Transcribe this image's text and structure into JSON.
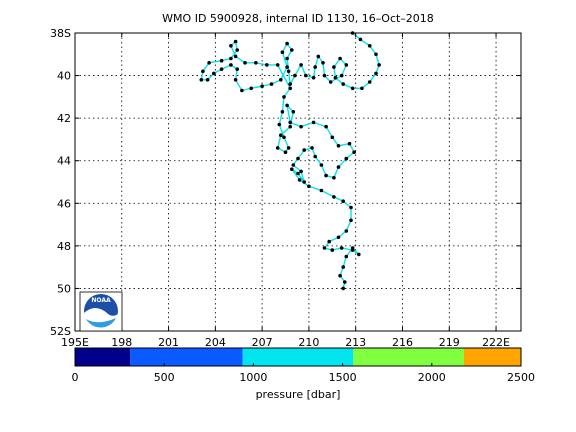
{
  "chart_data": [
    {
      "type": "line",
      "title": "WMO ID 5900928, internal ID 1130, 16–Oct–2018",
      "xlabel": "",
      "ylabel": "",
      "x_ticks": [
        195,
        198,
        201,
        204,
        207,
        210,
        213,
        216,
        219,
        222
      ],
      "x_tick_labels": [
        "195E",
        "198",
        "201",
        "204",
        "207",
        "210",
        "213",
        "216",
        "219",
        "222E"
      ],
      "y_ticks": [
        -38,
        -40,
        -42,
        -44,
        -46,
        -48,
        -50,
        -52
      ],
      "y_tick_labels": [
        "38S",
        "40",
        "42",
        "44",
        "46",
        "48",
        "50",
        "52S"
      ],
      "xlim": [
        195,
        223.6
      ],
      "ylim": [
        -52,
        -38
      ],
      "grid": true,
      "line_color": "#00e5ee",
      "marker_color": "#000000",
      "series": [
        {
          "values_lon_lat": [
            [
              212.8,
              -38.0
            ],
            [
              213.3,
              -38.3
            ],
            [
              213.9,
              -38.6
            ],
            [
              214.3,
              -39.0
            ],
            [
              214.5,
              -39.5
            ],
            [
              214.3,
              -39.9
            ],
            [
              213.9,
              -40.3
            ],
            [
              213.4,
              -40.6
            ],
            [
              212.8,
              -40.6
            ],
            [
              212.2,
              -40.4
            ],
            [
              211.7,
              -40.1
            ],
            [
              211.6,
              -39.6
            ],
            [
              212.0,
              -39.2
            ],
            [
              212.4,
              -39.5
            ],
            [
              212.1,
              -40.0
            ],
            [
              211.4,
              -40.3
            ],
            [
              211.0,
              -40.0
            ],
            [
              210.9,
              -39.4
            ],
            [
              210.6,
              -39.1
            ],
            [
              210.4,
              -39.6
            ],
            [
              210.3,
              -40.1
            ],
            [
              209.8,
              -40.0
            ],
            [
              209.5,
              -39.5
            ],
            [
              209.1,
              -40.0
            ],
            [
              208.8,
              -40.4
            ],
            [
              208.7,
              -39.8
            ],
            [
              208.6,
              -39.2
            ],
            [
              208.9,
              -38.8
            ],
            [
              208.6,
              -38.5
            ],
            [
              208.3,
              -38.9
            ],
            [
              208.6,
              -39.6
            ],
            [
              208.2,
              -40.2
            ],
            [
              207.6,
              -40.4
            ],
            [
              207.0,
              -40.5
            ],
            [
              206.3,
              -40.6
            ],
            [
              205.7,
              -40.7
            ],
            [
              205.3,
              -40.2
            ],
            [
              205.4,
              -39.7
            ],
            [
              205.0,
              -39.5
            ],
            [
              204.4,
              -39.7
            ],
            [
              203.9,
              -39.9
            ],
            [
              203.5,
              -40.2
            ],
            [
              203.1,
              -40.2
            ],
            [
              203.2,
              -39.8
            ],
            [
              203.6,
              -39.4
            ],
            [
              204.4,
              -39.3
            ],
            [
              205.0,
              -39.2
            ],
            [
              205.4,
              -38.8
            ],
            [
              205.3,
              -38.4
            ],
            [
              205.0,
              -38.6
            ],
            [
              205.3,
              -39.1
            ],
            [
              205.9,
              -39.4
            ],
            [
              206.6,
              -39.4
            ],
            [
              207.3,
              -39.5
            ],
            [
              208.0,
              -39.5
            ],
            [
              208.8,
              -40.6
            ],
            [
              208.4,
              -41.0
            ],
            [
              208.3,
              -41.7
            ],
            [
              208.1,
              -42.3
            ],
            [
              208.4,
              -42.9
            ],
            [
              208.7,
              -43.4
            ],
            [
              208.5,
              -43.6
            ],
            [
              208.0,
              -43.4
            ],
            [
              208.2,
              -42.8
            ],
            [
              208.8,
              -42.4
            ],
            [
              209.0,
              -41.7
            ],
            [
              208.6,
              -41.4
            ],
            [
              208.8,
              -42.2
            ],
            [
              209.5,
              -42.4
            ],
            [
              210.3,
              -42.2
            ],
            [
              211.1,
              -42.4
            ],
            [
              211.5,
              -42.9
            ],
            [
              211.9,
              -43.3
            ],
            [
              212.6,
              -43.2
            ],
            [
              212.9,
              -43.6
            ],
            [
              212.4,
              -43.9
            ],
            [
              211.9,
              -44.3
            ],
            [
              211.6,
              -44.8
            ],
            [
              211.1,
              -44.7
            ],
            [
              210.8,
              -44.2
            ],
            [
              210.4,
              -43.8
            ],
            [
              210.2,
              -43.4
            ],
            [
              209.7,
              -43.5
            ],
            [
              209.3,
              -43.9
            ],
            [
              209.0,
              -44.2
            ],
            [
              209.5,
              -44.5
            ],
            [
              209.7,
              -45.0
            ],
            [
              209.3,
              -44.6
            ],
            [
              208.9,
              -44.4
            ],
            [
              209.4,
              -44.9
            ],
            [
              210.0,
              -45.2
            ],
            [
              210.8,
              -45.4
            ],
            [
              211.6,
              -45.7
            ],
            [
              212.2,
              -45.9
            ],
            [
              212.7,
              -46.2
            ],
            [
              212.7,
              -46.8
            ],
            [
              212.4,
              -47.3
            ],
            [
              211.9,
              -47.6
            ],
            [
              211.3,
              -47.8
            ],
            [
              211.0,
              -48.1
            ],
            [
              211.5,
              -48.2
            ],
            [
              212.1,
              -48.1
            ],
            [
              212.8,
              -48.2
            ],
            [
              213.2,
              -48.4
            ],
            [
              212.8,
              -48.1
            ],
            [
              212.4,
              -48.5
            ],
            [
              212.2,
              -49.0
            ],
            [
              212.0,
              -49.4
            ],
            [
              212.3,
              -49.7
            ],
            [
              212.2,
              -50.0
            ]
          ]
        }
      ],
      "logo": "NOAA"
    },
    {
      "type": "colorbar",
      "xlabel": "pressure [dbar]",
      "ticks": [
        0,
        500,
        1000,
        1500,
        2000,
        2500
      ],
      "tick_labels": [
        "0",
        "500",
        "1000",
        "1500",
        "2000",
        "2500"
      ],
      "xlim": [
        0,
        2500
      ],
      "bands": [
        {
          "from": 0,
          "to": 310,
          "color": "#00008b"
        },
        {
          "from": 310,
          "to": 940,
          "color": "#0a5aff"
        },
        {
          "from": 940,
          "to": 1560,
          "color": "#00e5ee"
        },
        {
          "from": 1560,
          "to": 2180,
          "color": "#7fff3e"
        },
        {
          "from": 2180,
          "to": 2500,
          "color": "#ffa500"
        }
      ]
    }
  ]
}
